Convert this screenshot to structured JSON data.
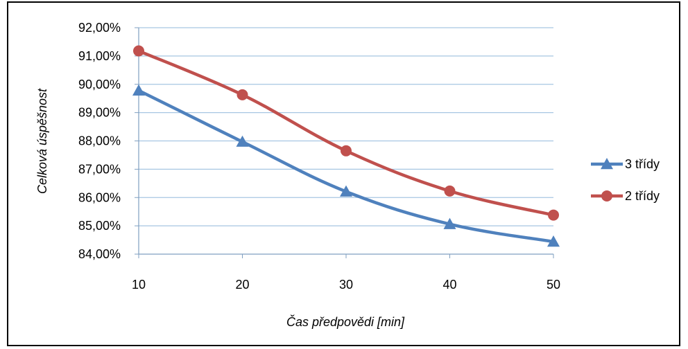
{
  "chart_data": {
    "type": "line",
    "title": "",
    "xlabel": "Čas předpovědi [min]",
    "ylabel": "Celková úspěšnost",
    "x": [
      10,
      20,
      30,
      40,
      50
    ],
    "x_tick_labels": [
      "10",
      "20",
      "30",
      "40",
      "50"
    ],
    "ylim": [
      84,
      92
    ],
    "y_ticks": [
      84,
      85,
      86,
      87,
      88,
      89,
      90,
      91,
      92
    ],
    "y_tick_labels": [
      "84,00%",
      "85,00%",
      "86,00%",
      "87,00%",
      "88,00%",
      "89,00%",
      "90,00%",
      "91,00%",
      "92,00%"
    ],
    "grid": true,
    "legend_position": "right",
    "series": [
      {
        "name": "3 třídy",
        "values": [
          89.78,
          87.97,
          86.21,
          85.06,
          84.44
        ],
        "color": "#4f81bd",
        "marker": "triangle"
      },
      {
        "name": "2 třídy",
        "values": [
          91.18,
          89.63,
          87.65,
          86.23,
          85.38
        ],
        "color": "#c0504d",
        "marker": "circle"
      }
    ]
  }
}
